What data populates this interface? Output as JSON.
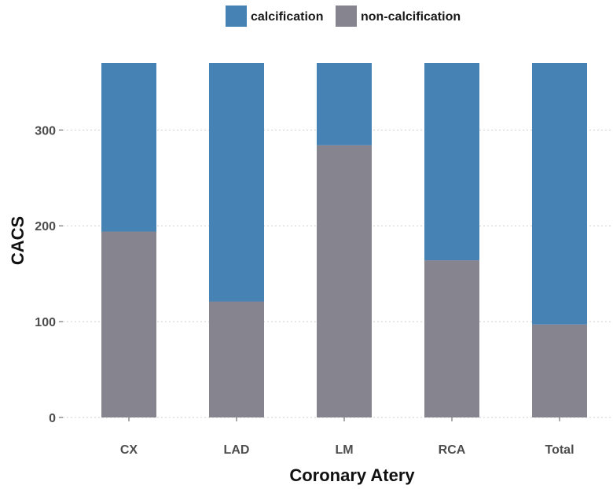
{
  "chart_data": {
    "type": "bar",
    "stacked": true,
    "title": "",
    "xlabel": "Coronary Atery",
    "ylabel": "CACS",
    "categories": [
      "CX",
      "LAD",
      "LM",
      "RCA",
      "Total"
    ],
    "series": [
      {
        "name": "non-calcification",
        "color": "#86848f",
        "values": [
          194,
          121,
          284,
          164,
          97
        ]
      },
      {
        "name": "calcification",
        "color": "#4682b4",
        "values": [
          176,
          249,
          86,
          206,
          273
        ]
      }
    ],
    "ylim": [
      0,
      370
    ],
    "yticks": [
      0,
      100,
      200,
      300
    ],
    "ytick_labels": [
      "0",
      "100",
      "200",
      "300"
    ],
    "grid": true,
    "legend": {
      "position": "top",
      "order": [
        "calcification",
        "non-calcification"
      ]
    }
  }
}
